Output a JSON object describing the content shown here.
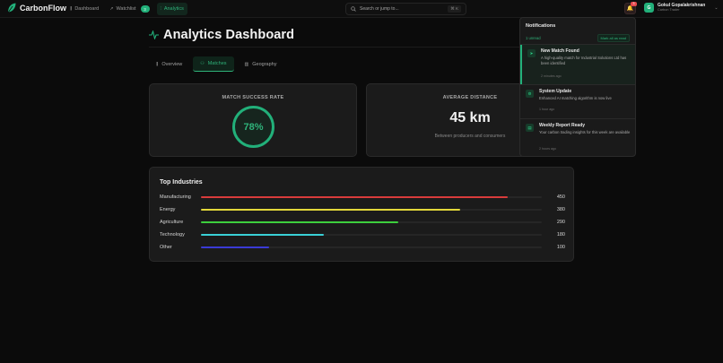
{
  "app": {
    "name": "CarbonFlow"
  },
  "nav": {
    "items": [
      {
        "label": "Dashboard",
        "icon": "bar-chart-icon",
        "glyph": "⫼",
        "active": false
      },
      {
        "label": "Watchlist",
        "icon": "trend-icon",
        "glyph": "↗",
        "active": false,
        "badge": "3"
      },
      {
        "label": "Analytics",
        "icon": "chart-icon",
        "glyph": "⫶",
        "active": true
      }
    ]
  },
  "search": {
    "placeholder": "Search or jump to...",
    "shortcut": "⌘ K"
  },
  "notifications_button": {
    "badge": "3"
  },
  "user": {
    "initial": "G",
    "name": "Gokul Gopalakrishnan",
    "role": "Carbon Trader"
  },
  "page": {
    "title": "Analytics Dashboard"
  },
  "tabs": [
    {
      "label": "Overview",
      "glyph": "⫼",
      "active": false
    },
    {
      "label": "Matches",
      "glyph": "⚇",
      "active": true
    },
    {
      "label": "Geography",
      "glyph": "▥",
      "active": false
    }
  ],
  "metrics": {
    "success_rate": {
      "label": "MATCH SUCCESS RATE",
      "value": "78%"
    },
    "avg_distance": {
      "label": "AVERAGE DISTANCE",
      "value": "45 km",
      "caption": "Between producers and consumers"
    }
  },
  "industries": {
    "title": "Top Industries",
    "max": 500,
    "items": [
      {
        "label": "Manufacturing",
        "value": 450,
        "display": "450",
        "color": "#d93b3b"
      },
      {
        "label": "Energy",
        "value": 380,
        "display": "380",
        "color": "#e3d83a"
      },
      {
        "label": "Agriculture",
        "value": 290,
        "display": "290",
        "color": "#3dcf3d"
      },
      {
        "label": "Technology",
        "value": 180,
        "display": "180",
        "color": "#3ad0d6"
      },
      {
        "label": "Other",
        "value": 100,
        "display": "100",
        "color": "#3a3ad6"
      }
    ]
  },
  "notifications": {
    "title": "Notifications",
    "unread_label": "1 unread",
    "mark_all_label": "Mark all as read",
    "items": [
      {
        "title": "New Match Found",
        "body": "A high-quality match for Industrial Solutions Ltd has been identified",
        "time": "2 minutes ago",
        "glyph": "➤",
        "unread": true
      },
      {
        "title": "System Update",
        "body": "Enhanced AI matching algorithm is now live",
        "time": "1 hour ago",
        "glyph": "⚙",
        "unread": false
      },
      {
        "title": "Weekly Report Ready",
        "body": "Your carbon trading insights for this week are available",
        "time": "2 hours ago",
        "glyph": "▤",
        "unread": false
      }
    ]
  },
  "colors": {
    "accent": "#22b07a",
    "danger": "#e5484d",
    "background": "#0b0b0b",
    "card": "#1b1b1b"
  }
}
